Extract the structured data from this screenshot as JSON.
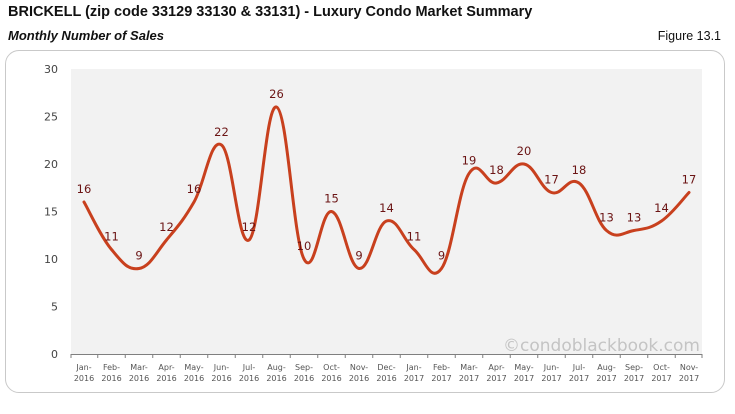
{
  "header": {
    "title": "BRICKELL (zip code 33129 33130 & 33131) - Luxury Condo Market Summary",
    "subtitle": "Monthly Number of Sales",
    "figure_label": "Figure 13.1"
  },
  "chart_data": {
    "type": "line",
    "title": "Monthly Number of Sales",
    "xlabel": "",
    "ylabel": "",
    "ylim": [
      0,
      30
    ],
    "yticks": [
      0,
      5,
      10,
      15,
      20,
      25,
      30
    ],
    "grid": false,
    "smooth": true,
    "categories": [
      [
        "Jan-",
        "2016"
      ],
      [
        "Feb-",
        "2016"
      ],
      [
        "Mar-",
        "2016"
      ],
      [
        "Apr-",
        "2016"
      ],
      [
        "May-",
        "2016"
      ],
      [
        "Jun-",
        "2016"
      ],
      [
        "Jul-",
        "2016"
      ],
      [
        "Aug-",
        "2016"
      ],
      [
        "Sep-",
        "2016"
      ],
      [
        "Oct-",
        "2016"
      ],
      [
        "Nov-",
        "2016"
      ],
      [
        "Dec-",
        "2016"
      ],
      [
        "Jan-",
        "2017"
      ],
      [
        "Feb-",
        "2017"
      ],
      [
        "Mar-",
        "2017"
      ],
      [
        "Apr-",
        "2017"
      ],
      [
        "May-",
        "2017"
      ],
      [
        "Jun-",
        "2017"
      ],
      [
        "Jul-",
        "2017"
      ],
      [
        "Aug-",
        "2017"
      ],
      [
        "Sep-",
        "2017"
      ],
      [
        "Oct-",
        "2017"
      ],
      [
        "Nov-",
        "2017"
      ]
    ],
    "series": [
      {
        "name": "Monthly Number of Sales",
        "color": "#c8401e",
        "label_color": "#6b1414",
        "values": [
          16,
          11,
          9,
          12,
          16,
          22,
          12,
          26,
          10,
          15,
          9,
          14,
          11,
          9,
          19,
          18,
          20,
          17,
          18,
          13,
          13,
          14,
          17
        ]
      }
    ],
    "plot_background": "#f2f2f2",
    "watermark": "©condoblackbook.com"
  }
}
